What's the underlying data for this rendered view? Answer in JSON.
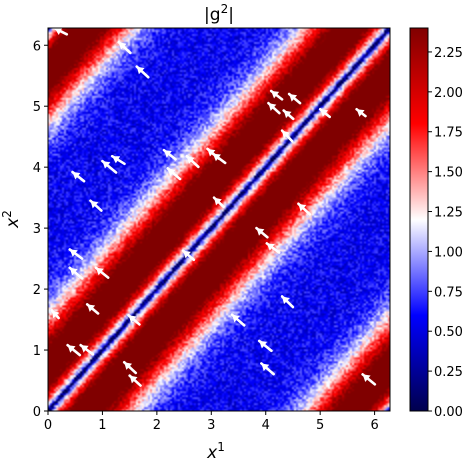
{
  "chart_data": {
    "type": "heatmap",
    "title": "|g²|",
    "title_base": "|g",
    "title_sup": "2",
    "title_end": "|",
    "xlabel_base": "x",
    "xlabel_sup": "1",
    "ylabel_base": "x",
    "ylabel_sup": "2",
    "xlim": [
      0,
      6.283
    ],
    "ylim": [
      0,
      6.283
    ],
    "xticks": [
      0,
      1,
      2,
      3,
      4,
      5,
      6
    ],
    "yticks": [
      0,
      1,
      2,
      3,
      4,
      5,
      6
    ],
    "colorbar": {
      "range": [
        0,
        2.4
      ],
      "ticks": [
        "0.00",
        "0.25",
        "0.50",
        "0.75",
        "1.00",
        "1.25",
        "1.50",
        "1.75",
        "2.00",
        "2.25"
      ],
      "tick_values": [
        0,
        0.25,
        0.5,
        0.75,
        1.0,
        1.25,
        1.5,
        1.75,
        2.0,
        2.25
      ],
      "colormap": "seismic",
      "colors": [
        "#00004d",
        "#0000ff",
        "#ffffff",
        "#ff0000",
        "#800000"
      ]
    },
    "field": "periodic band along x1 = x2: minimum on diagonal, red ridges on either side, white at intermediate offset, blue far from diagonal",
    "arrow_color": "#ffffff",
    "arrows": [
      [
        0.12,
        6.28,
        0.18,
        0.08
      ],
      [
        1.3,
        6.05,
        0.17,
        0.14
      ],
      [
        1.63,
        5.65,
        0.17,
        0.14
      ],
      [
        4.43,
        5.2,
        0.16,
        0.12
      ],
      [
        4.1,
        5.25,
        0.16,
        0.11
      ],
      [
        4.05,
        5.05,
        0.16,
        0.13
      ],
      [
        5.0,
        4.95,
        0.14,
        0.1
      ],
      [
        5.67,
        4.95,
        0.13,
        0.09
      ],
      [
        4.3,
        4.6,
        0.15,
        0.14
      ],
      [
        4.33,
        4.93,
        0.14,
        0.11
      ],
      [
        2.13,
        4.28,
        0.17,
        0.12
      ],
      [
        2.55,
        4.18,
        0.17,
        0.14
      ],
      [
        2.93,
        4.3,
        0.17,
        0.13
      ],
      [
        3.03,
        4.22,
        0.18,
        0.12
      ],
      [
        1.18,
        4.18,
        0.18,
        0.1
      ],
      [
        1.0,
        4.1,
        0.2,
        0.15
      ],
      [
        2.2,
        3.98,
        0.18,
        0.14
      ],
      [
        0.45,
        3.92,
        0.17,
        0.12
      ],
      [
        0.78,
        3.45,
        0.16,
        0.13
      ],
      [
        3.05,
        3.5,
        0.14,
        0.12
      ],
      [
        4.6,
        3.4,
        0.17,
        0.14
      ],
      [
        3.83,
        3.0,
        0.16,
        0.12
      ],
      [
        4.02,
        2.75,
        0.18,
        0.12
      ],
      [
        2.48,
        2.63,
        0.16,
        0.12
      ],
      [
        0.4,
        2.65,
        0.18,
        0.12
      ],
      [
        0.4,
        2.35,
        0.18,
        0.14
      ],
      [
        0.88,
        2.35,
        0.18,
        0.13
      ],
      [
        0.72,
        1.75,
        0.16,
        0.12
      ],
      [
        4.3,
        1.88,
        0.16,
        0.14
      ],
      [
        3.38,
        1.58,
        0.18,
        0.14
      ],
      [
        1.48,
        1.57,
        0.16,
        0.12
      ],
      [
        0.07,
        1.65,
        0.1,
        0.1
      ],
      [
        3.88,
        1.15,
        0.18,
        0.13
      ],
      [
        3.92,
        0.78,
        0.18,
        0.14
      ],
      [
        0.36,
        1.08,
        0.18,
        0.13
      ],
      [
        0.6,
        1.08,
        0.18,
        0.12
      ],
      [
        1.4,
        0.8,
        0.17,
        0.14
      ],
      [
        1.5,
        0.58,
        0.16,
        0.13
      ],
      [
        5.78,
        0.6,
        0.18,
        0.13
      ]
    ]
  }
}
